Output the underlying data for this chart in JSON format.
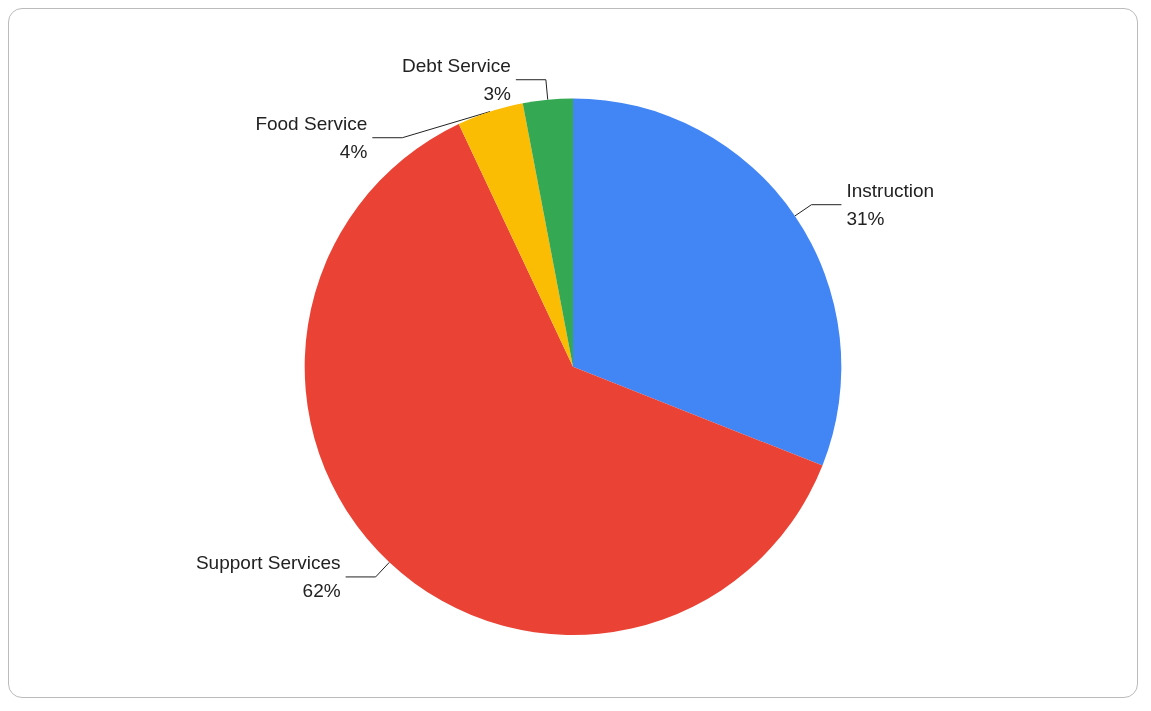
{
  "chart_data": {
    "type": "pie",
    "categories": [
      "Instruction",
      "Support Services",
      "Food Service",
      "Debt Service"
    ],
    "values": [
      31,
      62,
      4,
      3
    ],
    "colors": [
      "#4285f4",
      "#ea4335",
      "#fbbc04",
      "#34a853"
    ],
    "value_labels": [
      "31%",
      "62%",
      "4%",
      "3%"
    ],
    "legend": false
  }
}
